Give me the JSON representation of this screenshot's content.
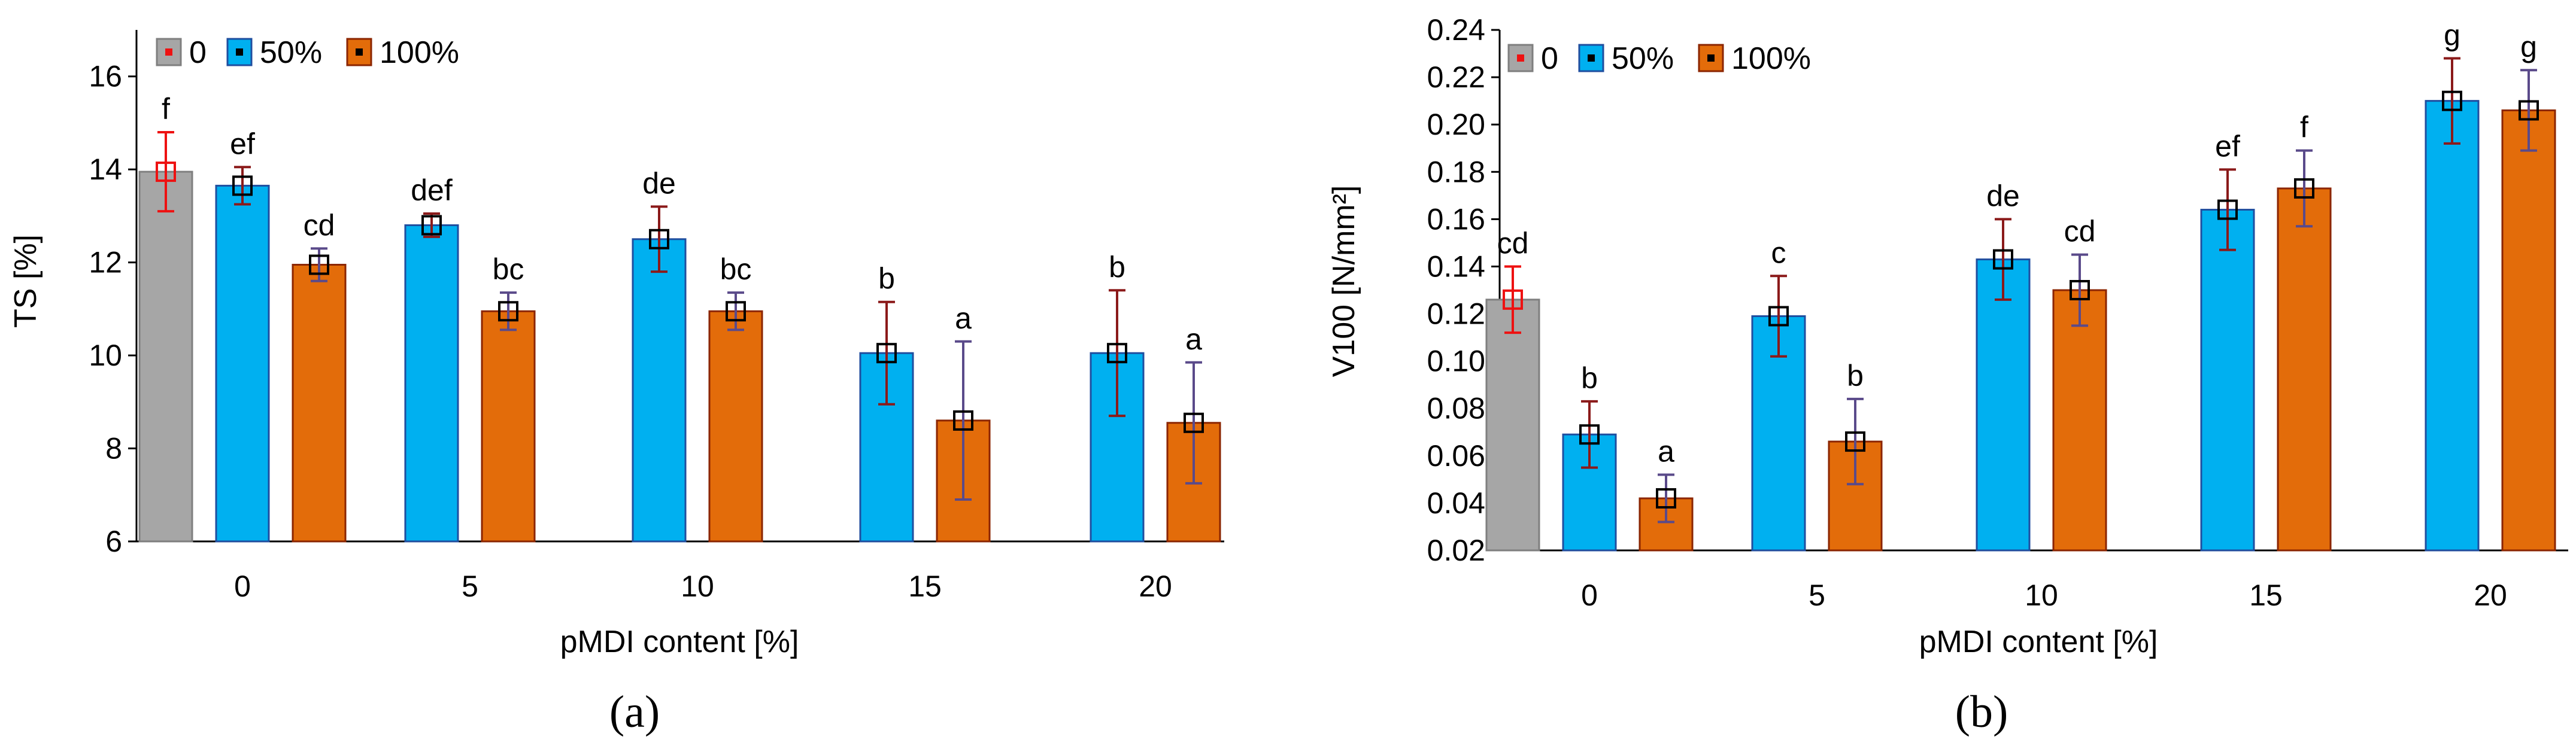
{
  "chart_data": [
    {
      "panel_label": "(a)",
      "type": "bar",
      "xlabel": "pMDI content [%]",
      "ylabel": "TS [%]",
      "ylim": [
        6,
        17
      ],
      "yticks": [
        6,
        8,
        10,
        12,
        14,
        16
      ],
      "legend_position": "top-left",
      "grid": false,
      "groups": [
        {
          "category": "0",
          "bars": [
            {
              "series": "0",
              "value": 13.95,
              "err": 0.85,
              "letter": "f"
            },
            {
              "series": "50%",
              "value": 13.65,
              "err": 0.4,
              "letter": "ef"
            },
            {
              "series": "100%",
              "value": 11.95,
              "err": 0.35,
              "letter": "cd"
            }
          ]
        },
        {
          "category": "5",
          "bars": [
            {
              "series": "50%",
              "value": 12.8,
              "err": 0.25,
              "letter": "def"
            },
            {
              "series": "100%",
              "value": 10.95,
              "err": 0.4,
              "letter": "bc"
            }
          ]
        },
        {
          "category": "10",
          "bars": [
            {
              "series": "50%",
              "value": 12.5,
              "err": 0.7,
              "letter": "de"
            },
            {
              "series": "100%",
              "value": 10.95,
              "err": 0.4,
              "letter": "bc"
            }
          ]
        },
        {
          "category": "15",
          "bars": [
            {
              "series": "50%",
              "value": 10.05,
              "err": 1.1,
              "letter": "b"
            },
            {
              "series": "100%",
              "value": 8.6,
              "err": 1.7,
              "letter": "a"
            }
          ]
        },
        {
          "category": "20",
          "bars": [
            {
              "series": "50%",
              "value": 10.05,
              "err": 1.35,
              "letter": "b"
            },
            {
              "series": "100%",
              "value": 8.55,
              "err": 1.3,
              "letter": "a"
            }
          ]
        }
      ]
    },
    {
      "panel_label": "(b)",
      "type": "bar",
      "xlabel": "pMDI content [%]",
      "ylabel": "V100 [N/mm²]",
      "ylim": [
        0.02,
        0.24
      ],
      "yticks": [
        0.02,
        0.04,
        0.06,
        0.08,
        0.1,
        0.12,
        0.14,
        0.16,
        0.18,
        0.2,
        0.22,
        0.24
      ],
      "legend_position": "top-left",
      "grid": false,
      "groups": [
        {
          "category": "0",
          "bars": [
            {
              "series": "0",
              "value": 0.126,
              "err": 0.014,
              "letter": "cd"
            },
            {
              "series": "50%",
              "value": 0.069,
              "err": 0.014,
              "letter": "b"
            },
            {
              "series": "100%",
              "value": 0.042,
              "err": 0.01,
              "letter": "a"
            }
          ]
        },
        {
          "category": "5",
          "bars": [
            {
              "series": "50%",
              "value": 0.119,
              "err": 0.017,
              "letter": "c"
            },
            {
              "series": "100%",
              "value": 0.066,
              "err": 0.018,
              "letter": "b"
            }
          ]
        },
        {
          "category": "10",
          "bars": [
            {
              "series": "50%",
              "value": 0.143,
              "err": 0.017,
              "letter": "de"
            },
            {
              "series": "100%",
              "value": 0.13,
              "err": 0.015,
              "letter": "cd"
            }
          ]
        },
        {
          "category": "15",
          "bars": [
            {
              "series": "50%",
              "value": 0.164,
              "err": 0.017,
              "letter": "ef"
            },
            {
              "series": "100%",
              "value": 0.173,
              "err": 0.016,
              "letter": "f"
            }
          ]
        },
        {
          "category": "20",
          "bars": [
            {
              "series": "50%",
              "value": 0.21,
              "err": 0.018,
              "letter": "g"
            },
            {
              "series": "100%",
              "value": 0.206,
              "err": 0.017,
              "letter": "g"
            }
          ]
        }
      ]
    }
  ],
  "legend": [
    {
      "label": "0",
      "fill": "#a6a6a6",
      "stroke": "#7f7f7f",
      "err_color": "#ee1111"
    },
    {
      "label": "50%",
      "fill": "#00b0f0",
      "stroke": "#1f4e9f",
      "err_color": "#8b1a1a"
    },
    {
      "label": "100%",
      "fill": "#e36c0a",
      "stroke": "#8b2500",
      "err_color": "#5a4a8a"
    }
  ],
  "colors": {
    "axis": "#000000",
    "marker": "#000000"
  }
}
